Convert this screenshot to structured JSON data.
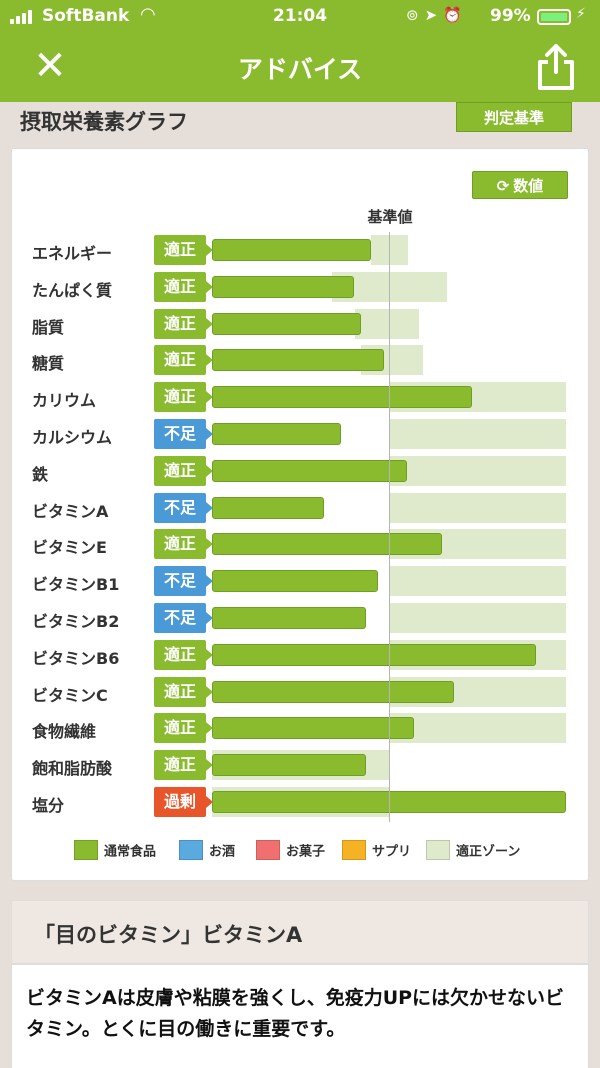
{
  "status": {
    "carrier": "SoftBank",
    "time": "21:04",
    "battery": "99%"
  },
  "nav": {
    "title": "アドバイス"
  },
  "graph": {
    "title": "摂取栄養素グラフ",
    "criteria_label": "判定基準",
    "numbers_label": "数値",
    "standard_label": "基準値"
  },
  "chart_data": {
    "type": "bar",
    "orientation": "horizontal",
    "reference_line": "基準値",
    "units": "percent of reference value (estimated)",
    "categories": [
      "エネルギー",
      "たんぱく質",
      "脂質",
      "糖質",
      "カリウム",
      "カルシウム",
      "鉄",
      "ビタミンA",
      "ビタミンE",
      "ビタミンB1",
      "ビタミンB2",
      "ビタミンB6",
      "ビタミンC",
      "食物繊維",
      "飽和脂肪酸",
      "塩分"
    ],
    "statuses": [
      "適正",
      "適正",
      "適正",
      "適正",
      "適正",
      "不足",
      "適正",
      "不足",
      "適正",
      "不足",
      "不足",
      "適正",
      "適正",
      "適正",
      "適正",
      "過剰"
    ],
    "values": [
      90,
      80,
      84,
      97,
      147,
      73,
      110,
      63,
      130,
      94,
      87,
      183,
      137,
      114,
      87,
      200
    ],
    "zone_ranges": [
      [
        90,
        111
      ],
      [
        68,
        133
      ],
      [
        81,
        117
      ],
      [
        84,
        119
      ],
      [
        100,
        200
      ],
      [
        100,
        200
      ],
      [
        100,
        200
      ],
      [
        100,
        200
      ],
      [
        100,
        200
      ],
      [
        100,
        200
      ],
      [
        100,
        200
      ],
      [
        100,
        200
      ],
      [
        100,
        200
      ],
      [
        100,
        200
      ],
      [
        0,
        100
      ],
      [
        0,
        100
      ]
    ],
    "axis_max": 200,
    "status_colors": {
      "適正": "#8abb2f",
      "不足": "#4a9ad8",
      "過剰": "#e8552a"
    },
    "bar_color": "#8abb2f",
    "zone_color": "#dfeacc"
  },
  "legend": [
    {
      "label": "通常食品",
      "color": "#8abb2f"
    },
    {
      "label": "お酒",
      "color": "#5aaae0"
    },
    {
      "label": "お菓子",
      "color": "#f07070"
    },
    {
      "label": "サプリ",
      "color": "#f5b324"
    },
    {
      "label": "適正ゾーン",
      "color": "#dfeacc"
    }
  ],
  "advice": {
    "title": "「目のビタミン」ビタミンA",
    "body": "ビタミンAは皮膚や粘膜を強くし、免疫力UPには欠かせないビタミン。とくに目の働きに重要です。"
  }
}
